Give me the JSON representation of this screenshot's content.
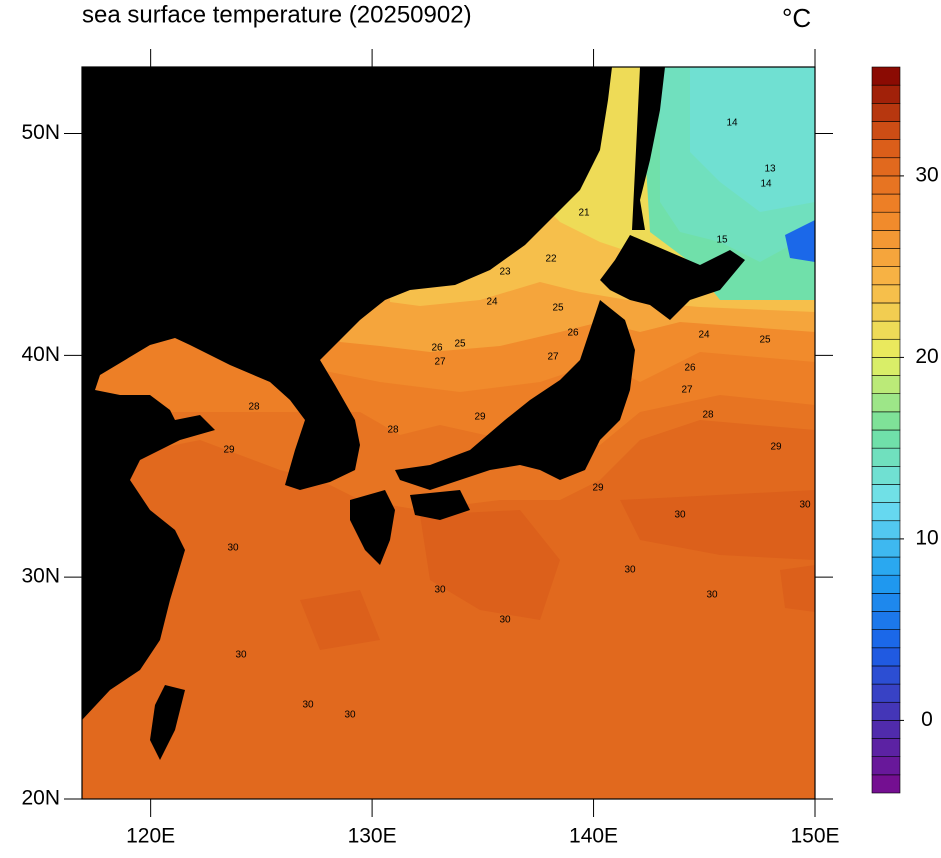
{
  "chart_data": {
    "type": "contour_map",
    "title": "sea surface temperature (20250902)",
    "unit": "°C",
    "xlim": [
      116.9,
      150
    ],
    "ylim": [
      20,
      53
    ],
    "xticks": [
      {
        "value": 120,
        "label": "120E"
      },
      {
        "value": 130,
        "label": "130E"
      },
      {
        "value": 140,
        "label": "140E"
      },
      {
        "value": 150,
        "label": "150E"
      }
    ],
    "yticks": [
      {
        "value": 20,
        "label": "20N"
      },
      {
        "value": 30,
        "label": "30N"
      },
      {
        "value": 40,
        "label": "40N"
      },
      {
        "value": 50,
        "label": "50N"
      }
    ],
    "colorbar": {
      "lim": [
        -4,
        36
      ],
      "step": 1,
      "ticks": [
        0,
        10,
        20,
        30
      ],
      "colors": [
        "#7a0a8c",
        "#4a30b0",
        "#1a60e8",
        "#20a0f0",
        "#70e0f0",
        "#70e0a0",
        "#e8f060",
        "#f8b848",
        "#f08428",
        "#d85818",
        "#800000"
      ]
    },
    "land_color": "#000000",
    "contour_labels": [
      30,
      30,
      30,
      30,
      30,
      30,
      30,
      30,
      30,
      30,
      29,
      29,
      29,
      29,
      28,
      28,
      28,
      27,
      27,
      27,
      26,
      26,
      26,
      25,
      25,
      25,
      24,
      24,
      23,
      22,
      21,
      15,
      14,
      14,
      13
    ]
  }
}
